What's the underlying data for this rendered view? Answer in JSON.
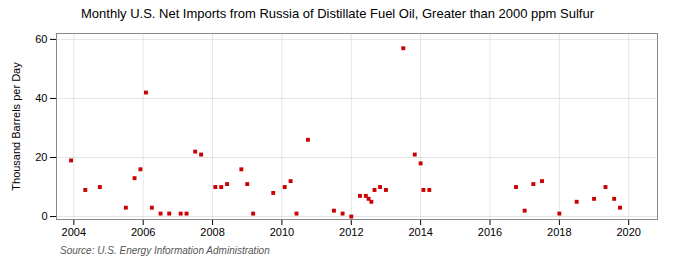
{
  "chart_data": {
    "type": "scatter",
    "title": "Monthly U.S. Net Imports from Russia of Distillate Fuel Oil, Greater than 2000 ppm Sulfur",
    "ylabel": "Thousand Barrels per Day",
    "source": "Source: U.S. Energy Information Administration",
    "x": [
      2003.92,
      2004.33,
      2004.75,
      2005.5,
      2005.75,
      2005.92,
      2006.08,
      2006.25,
      2006.5,
      2006.75,
      2007.08,
      2007.25,
      2007.5,
      2007.67,
      2008.08,
      2008.25,
      2008.42,
      2008.83,
      2009.0,
      2009.17,
      2009.75,
      2010.08,
      2010.25,
      2010.42,
      2010.75,
      2011.5,
      2011.75,
      2012.0,
      2012.25,
      2012.42,
      2012.5,
      2012.58,
      2012.67,
      2012.83,
      2013.0,
      2013.5,
      2013.83,
      2014.0,
      2014.08,
      2014.25,
      2016.75,
      2017.0,
      2017.25,
      2017.5,
      2018.0,
      2018.5,
      2019.0,
      2019.33,
      2019.58,
      2019.75
    ],
    "values": [
      19,
      9,
      10,
      3,
      13,
      16,
      42,
      3,
      1,
      1,
      1,
      1,
      22,
      21,
      10,
      10,
      11,
      16,
      11,
      1,
      8,
      10,
      12,
      1,
      26,
      2,
      1,
      0,
      7,
      7,
      6,
      5,
      9,
      10,
      9,
      57,
      21,
      18,
      9,
      9,
      10,
      2,
      11,
      12,
      1,
      5,
      6,
      10,
      6,
      3
    ],
    "color": "#cc0000",
    "marker": "square",
    "xlim": [
      2003.5,
      2020.83
    ],
    "ylim": [
      -1,
      62
    ],
    "xticks": [
      2004,
      2006,
      2008,
      2010,
      2012,
      2014,
      2016,
      2018,
      2020
    ],
    "yticks": [
      0,
      20,
      40,
      60
    ],
    "grid": true
  }
}
